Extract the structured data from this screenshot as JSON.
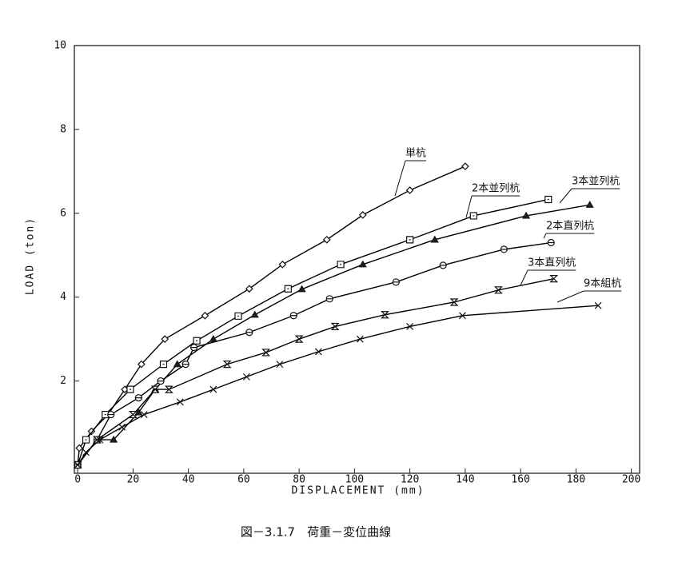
{
  "chart_data": {
    "type": "line",
    "caption": "図－3.1.7　荷重－変位曲線",
    "x_label": "DISPLACEMENT (mm)",
    "y_label": "LOAD (ton)",
    "xlim": [
      -1.2,
      203
    ],
    "ylim": [
      -0.2,
      10
    ],
    "xticks": [
      0,
      20,
      40,
      60,
      80,
      100,
      120,
      140,
      160,
      180,
      200
    ],
    "yticks": [
      2,
      4,
      6,
      8,
      10
    ],
    "series": [
      {
        "name": "単杭",
        "color": "#000000",
        "marker": "diamond",
        "x": [
          0,
          0.6,
          5,
          11,
          17,
          23,
          31.5,
          46,
          62,
          74,
          90,
          103,
          120,
          140
        ],
        "values": [
          0,
          0.4,
          0.8,
          1.2,
          1.8,
          2.4,
          3.0,
          3.56,
          4.2,
          4.78,
          5.37,
          5.96,
          6.55,
          7.12
        ]
      },
      {
        "name": "2本並列杭",
        "color": "#000000",
        "marker": "square",
        "x": [
          0,
          3,
          10,
          19,
          31,
          43,
          58,
          76,
          95,
          120,
          143,
          170
        ],
        "values": [
          0,
          0.6,
          1.2,
          1.8,
          2.4,
          2.96,
          3.55,
          4.2,
          4.78,
          5.37,
          5.94,
          6.33
        ]
      },
      {
        "name": "3本並列杭",
        "color": "#000000",
        "marker": "triangle",
        "x": [
          0,
          7,
          13,
          22,
          28,
          36,
          49,
          64,
          81,
          103,
          129,
          162,
          185
        ],
        "values": [
          0,
          0.6,
          0.6,
          1.25,
          1.8,
          2.4,
          3.0,
          3.58,
          4.19,
          4.78,
          5.37,
          5.94,
          6.2
        ]
      },
      {
        "name": "2本直列杭",
        "color": "#000000",
        "marker": "circle",
        "x": [
          0,
          7,
          12,
          22,
          30,
          39,
          42,
          62,
          78,
          91,
          115,
          132,
          154,
          171
        ],
        "values": [
          0,
          0.6,
          1.2,
          1.6,
          2.0,
          2.4,
          2.8,
          3.16,
          3.56,
          3.96,
          4.36,
          4.76,
          5.14,
          5.3
        ]
      },
      {
        "name": "3本直列杭",
        "color": "#000000",
        "marker": "hourglass",
        "x": [
          0,
          7,
          20,
          28,
          33,
          54,
          68,
          80,
          93,
          111,
          136,
          152,
          172
        ],
        "values": [
          0,
          0.6,
          1.2,
          1.8,
          1.8,
          2.4,
          2.68,
          3.0,
          3.3,
          3.58,
          3.88,
          4.17,
          4.44
        ]
      },
      {
        "name": "9本組杭",
        "color": "#000000",
        "marker": "cross",
        "x": [
          0,
          3,
          8,
          16,
          24,
          37,
          49,
          61,
          73,
          87,
          102,
          120,
          139,
          188
        ],
        "values": [
          0,
          0.3,
          0.6,
          0.9,
          1.2,
          1.5,
          1.8,
          2.1,
          2.4,
          2.7,
          3.0,
          3.3,
          3.56,
          3.8
        ]
      }
    ]
  }
}
